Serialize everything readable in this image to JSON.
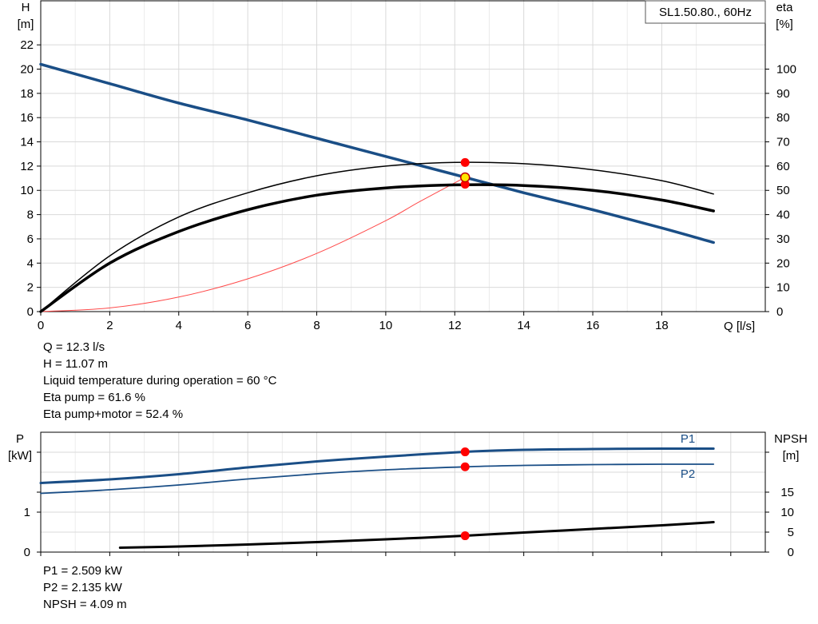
{
  "chart_data": [
    {
      "type": "line",
      "title": "SL1.50.80., 60Hz",
      "xlabel": "Q [l/s]",
      "ylabel_left": [
        "H",
        "[m]"
      ],
      "ylabel_right": [
        "eta",
        "[%]"
      ],
      "xlim": [
        0,
        21
      ],
      "ylim_left": [
        0,
        25.7
      ],
      "ylim_right": [
        0,
        128.5
      ],
      "x_ticks": [
        "0",
        "2",
        "4",
        "6",
        "8",
        "10",
        "12",
        "14",
        "16",
        "18"
      ],
      "y_ticks_left": [
        "0",
        "2",
        "4",
        "6",
        "8",
        "10",
        "12",
        "14",
        "16",
        "18",
        "20",
        "22"
      ],
      "y_ticks_right": [
        "0",
        "10",
        "20",
        "30",
        "40",
        "50",
        "60",
        "70",
        "80",
        "90",
        "100"
      ],
      "grid": true,
      "series": [
        {
          "axis": "left",
          "color": "#1a4e86",
          "width": 3.5,
          "x": [
            0,
            2,
            4,
            6,
            8,
            10,
            12,
            14,
            16,
            18,
            19.5
          ],
          "y": [
            20.4,
            18.8,
            17.2,
            15.8,
            14.3,
            12.8,
            11.3,
            9.8,
            8.4,
            6.9,
            5.7
          ]
        },
        {
          "axis": "left",
          "color": "#000000",
          "width": 1.5,
          "x": [
            0,
            2,
            4,
            6,
            8,
            10,
            12,
            14,
            16,
            18,
            19.5
          ],
          "y": [
            0,
            4.6,
            7.8,
            9.8,
            11.2,
            12.0,
            12.3,
            12.2,
            11.7,
            10.8,
            9.7
          ]
        },
        {
          "axis": "left",
          "color": "#000000",
          "width": 3.5,
          "x": [
            0,
            2,
            4,
            6,
            8,
            10,
            12,
            14,
            16,
            18,
            19.5
          ],
          "y": [
            0,
            4.0,
            6.6,
            8.4,
            9.6,
            10.2,
            10.45,
            10.4,
            10.0,
            9.2,
            8.3
          ]
        },
        {
          "axis": "left",
          "color": "#ff4a4a",
          "width": 1,
          "x": [
            0,
            2,
            4,
            6,
            8,
            10,
            11,
            12.3
          ],
          "y": [
            0,
            0.3,
            1.2,
            2.7,
            4.8,
            7.5,
            9.1,
            11.07
          ]
        }
      ],
      "points": [
        {
          "x": 12.3,
          "y": 12.3,
          "color": "#ff0000"
        },
        {
          "x": 12.3,
          "y": 10.5,
          "color": "#ff0000"
        },
        {
          "x": 12.3,
          "y": 11.07,
          "color": "#ffe800",
          "stroke": "#c00000"
        }
      ]
    },
    {
      "type": "line",
      "ylabel_left": [
        "P",
        "[kW]"
      ],
      "ylabel_right": [
        "NPSH",
        "[m]"
      ],
      "xlim": [
        0,
        21
      ],
      "ylim_left": [
        0,
        3.0
      ],
      "ylim_right": [
        0,
        30
      ],
      "y_ticks_left": [
        "0",
        "1"
      ],
      "y_ticks_right": [
        "0",
        "5",
        "10",
        "15"
      ],
      "grid": true,
      "series": [
        {
          "name": "P1",
          "axis": "left",
          "color": "#1a4e86",
          "width": 3,
          "x": [
            0,
            2,
            4,
            6,
            8,
            10,
            12.3,
            14,
            16,
            18,
            19.5
          ],
          "y": [
            1.73,
            1.82,
            1.95,
            2.12,
            2.27,
            2.39,
            2.509,
            2.56,
            2.58,
            2.59,
            2.59
          ]
        },
        {
          "name": "P2",
          "axis": "left",
          "color": "#1a4e86",
          "width": 1.8,
          "x": [
            0,
            2,
            4,
            6,
            8,
            10,
            12.3,
            14,
            16,
            18,
            19.5
          ],
          "y": [
            1.47,
            1.56,
            1.68,
            1.83,
            1.96,
            2.06,
            2.135,
            2.17,
            2.19,
            2.2,
            2.2
          ]
        },
        {
          "axis": "right",
          "color": "#000000",
          "width": 3,
          "x": [
            2.3,
            4,
            6,
            8,
            10,
            12.3,
            14,
            16,
            18,
            19.5
          ],
          "y": [
            1.1,
            1.4,
            1.9,
            2.5,
            3.2,
            4.09,
            4.9,
            5.8,
            6.7,
            7.5
          ]
        }
      ],
      "points": [
        {
          "x": 12.3,
          "y": 2.509,
          "axis": "left",
          "color": "#ff0000"
        },
        {
          "x": 12.3,
          "y": 2.135,
          "axis": "left",
          "color": "#ff0000"
        },
        {
          "x": 12.3,
          "y": 4.09,
          "axis": "right",
          "color": "#ff0000"
        }
      ]
    }
  ],
  "readout_top": [
    "Q = 12.3 l/s",
    "H = 11.07 m",
    "Liquid temperature during operation = 60 °C",
    "Eta pump = 61.6 %",
    "Eta pump+motor = 52.4 %"
  ],
  "readout_bottom": [
    "P1 = 2.509 kW",
    "P2 = 2.135 kW",
    "NPSH = 4.09 m"
  ]
}
